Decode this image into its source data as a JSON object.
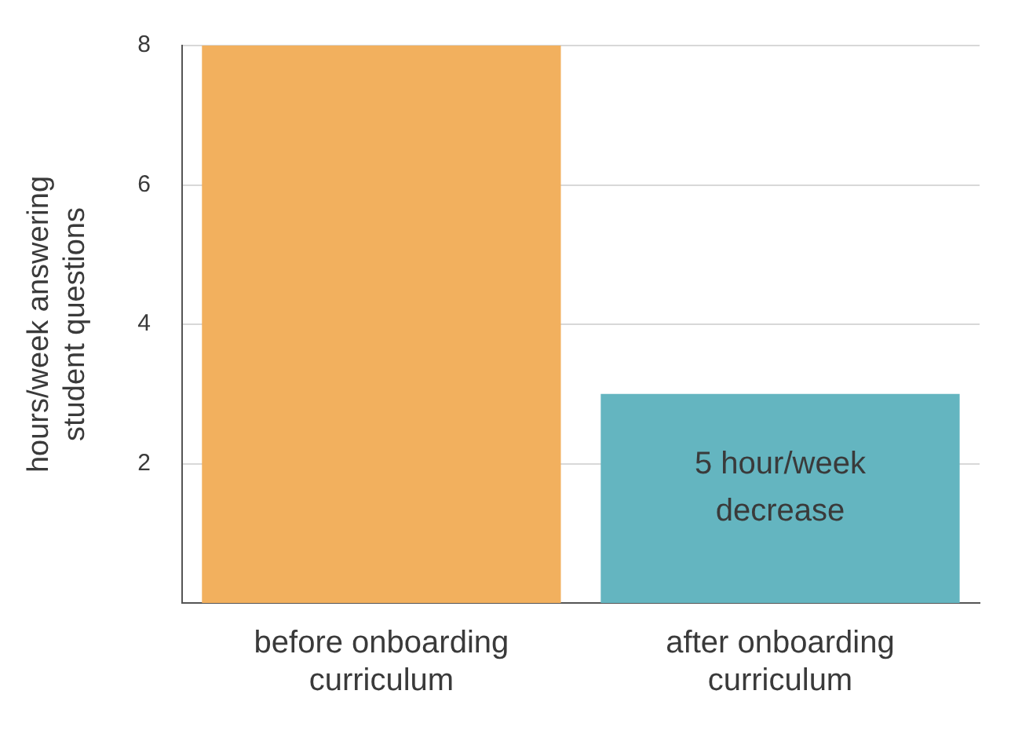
{
  "chart_data": {
    "type": "bar",
    "ylabel": "hours/week answering student questions",
    "categories": [
      "before onboarding curriculum",
      "after onboarding curriculum"
    ],
    "values": [
      8,
      3
    ],
    "colors": [
      "#f2b05e",
      "#64b5c0"
    ],
    "ylim": [
      0,
      8
    ],
    "yticks": [
      2,
      4,
      6,
      8
    ],
    "grid": "y",
    "legend": false,
    "annotations": [
      "5 hour/week decrease"
    ]
  }
}
